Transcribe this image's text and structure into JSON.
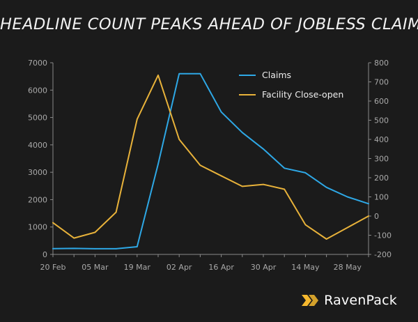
{
  "title": "HEADLINE COUNT PEAKS AHEAD OF JOBLESS CLAIMS",
  "brand": {
    "name": "RavenPack",
    "accent": "#f5b82e"
  },
  "chart_data": {
    "type": "line",
    "title": "HEADLINE COUNT PEAKS AHEAD OF JOBLESS CLAIMS",
    "xlabel": "",
    "ylabel": "",
    "x": [
      "20 Feb",
      "27 Feb",
      "05 Mar",
      "12 Mar",
      "19 Mar",
      "26 Mar",
      "02 Apr",
      "09 Apr",
      "16 Apr",
      "23 Apr",
      "30 Apr",
      "07 May",
      "14 May",
      "21 May",
      "28 May",
      "04 Jun"
    ],
    "x_tick_labels": [
      "20 Feb",
      "05 Mar",
      "19 Mar",
      "02 Apr",
      "16 Apr",
      "30 Apr",
      "14 May",
      "28 May"
    ],
    "y_left": {
      "min": 0,
      "max": 7000,
      "ticks": [
        0,
        1000,
        2000,
        3000,
        4000,
        5000,
        6000,
        7000
      ]
    },
    "y_right": {
      "min": -200,
      "max": 800,
      "ticks": [
        -200,
        -100,
        0,
        100,
        200,
        300,
        400,
        500,
        600,
        700,
        800
      ]
    },
    "series": [
      {
        "name": "Claims",
        "axis": "left",
        "color": "#2ea8e6",
        "values": [
          210,
          220,
          205,
          205,
          280,
          3300,
          6600,
          6600,
          5200,
          4450,
          3850,
          3150,
          2980,
          2450,
          2100,
          1850
        ]
      },
      {
        "name": "Facility Close-open",
        "axis": "right",
        "color": "#e8b23a",
        "values": [
          -35,
          -115,
          -85,
          20,
          505,
          735,
          400,
          265,
          210,
          155,
          165,
          140,
          -45,
          -120,
          -60,
          0
        ]
      }
    ],
    "legend": {
      "position": "top-right"
    },
    "grid": false
  }
}
